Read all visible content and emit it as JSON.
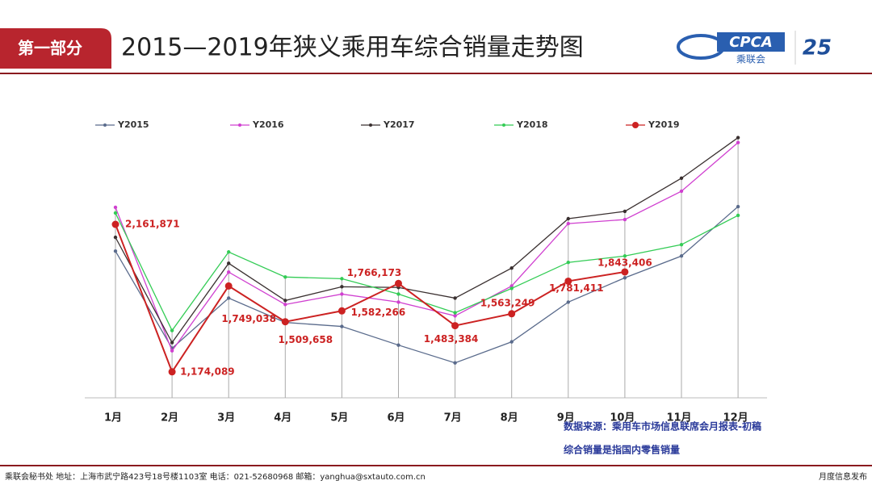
{
  "header": {
    "section": "第一部分",
    "logo": "CPCA",
    "logo_sub": "乘联会",
    "badge": "25"
  },
  "chart_data": {
    "type": "line",
    "title": "2015—2019年狭义乘用车综合销量走势图",
    "categories": [
      "1月",
      "2月",
      "3月",
      "4月",
      "5月",
      "6月",
      "7月",
      "8月",
      "9月",
      "10月",
      "11月",
      "12月"
    ],
    "series": [
      {
        "name": "Y2015",
        "color": "#5a6b8c",
        "values": [
          1983000,
          1332000,
          1668000,
          1505000,
          1478000,
          1353000,
          1234000,
          1375000,
          1641000,
          1804000,
          1950000,
          2281000
        ]
      },
      {
        "name": "Y2016",
        "color": "#d040d0",
        "values": [
          2276000,
          1315000,
          1842000,
          1625000,
          1695000,
          1641000,
          1549000,
          1749000,
          2167000,
          2194000,
          2384000,
          2710000
        ]
      },
      {
        "name": "Y2017",
        "color": "#3a3030",
        "values": [
          2075000,
          1370000,
          1901000,
          1652000,
          1744000,
          1739000,
          1668000,
          1869000,
          2200000,
          2249000,
          2471000,
          2743000
        ]
      },
      {
        "name": "Y2018",
        "color": "#33cc55",
        "values": [
          2238000,
          1451000,
          1977000,
          1809000,
          1798000,
          1695000,
          1570000,
          1733000,
          1907000,
          1950000,
          2026000,
          2222000
        ]
      },
      {
        "name": "Y2019",
        "color": "#cc2222",
        "values": [
          2161871,
          1174089,
          1749038,
          1509658,
          1582266,
          1766173,
          1483384,
          1563249,
          1781411,
          1843406,
          null,
          null
        ],
        "value_labels": [
          "2,161,871",
          "1,174,089",
          "1,749,038",
          "1,509,658",
          "1,582,266",
          "1,766,173",
          "1,483,384",
          "1,563,249",
          "1,781,411",
          "1,843,406",
          null,
          null
        ]
      }
    ],
    "ylim": [
      1000000,
      2800000
    ]
  },
  "notes": [
    "数据来源：乘用车市场信息联席会月报表-初稿",
    "综合销量是指国内零售销量"
  ],
  "footer": {
    "left": "乘联会秘书处   地址：上海市武宁路423号18号楼1103室   电话：021-52680968   邮箱：yanghua@sxtauto.com.cn",
    "right": "月度信息发布"
  }
}
